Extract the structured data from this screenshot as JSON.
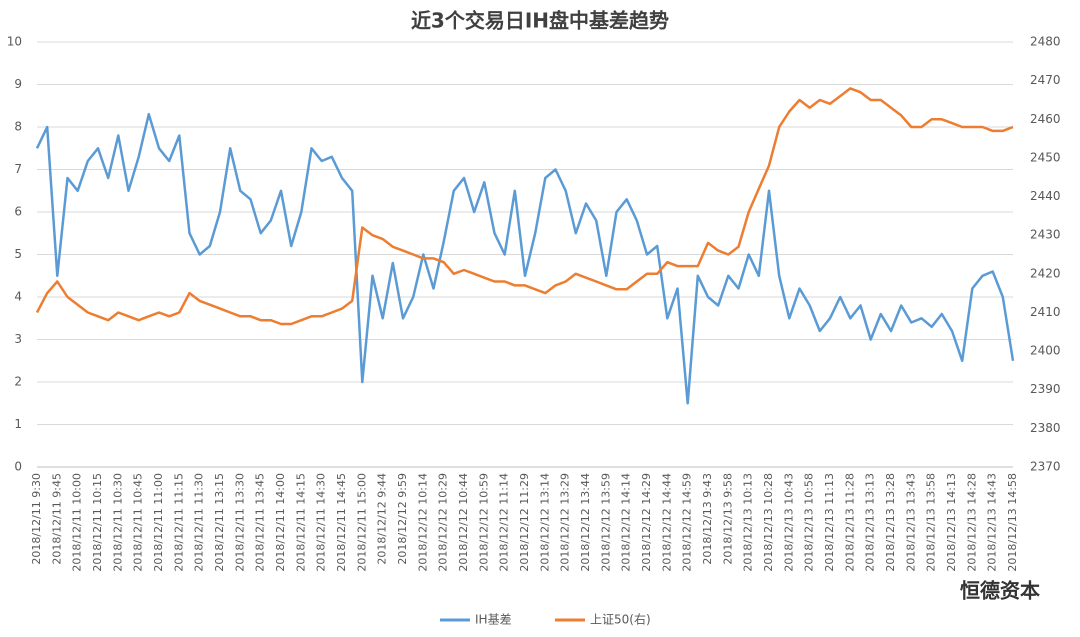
{
  "chart_data": {
    "type": "line",
    "title": "近3个交易日IH盘中基差趋势",
    "watermark": "恒德资本",
    "categories": [
      "2018/12/11 9:30",
      null,
      "2018/12/11 9:45",
      null,
      "2018/12/11 10:00",
      null,
      "2018/12/11 10:15",
      null,
      "2018/12/11 10:30",
      null,
      "2018/12/11 10:45",
      null,
      "2018/12/11 11:00",
      null,
      "2018/12/11 11:15",
      null,
      "2018/12/11 11:30",
      null,
      "2018/12/11 13:15",
      null,
      "2018/12/11 13:30",
      null,
      "2018/12/11 13:45",
      null,
      "2018/12/11 14:00",
      null,
      "2018/12/11 14:15",
      null,
      "2018/12/11 14:30",
      null,
      "2018/12/11 14:45",
      null,
      "2018/12/11 15:00",
      null,
      "2018/12/12 9:44",
      null,
      "2018/12/12 9:59",
      null,
      "2018/12/12 10:14",
      null,
      "2018/12/12 10:29",
      null,
      "2018/12/12 10:44",
      null,
      "2018/12/12 10:59",
      null,
      "2018/12/12 11:14",
      null,
      "2018/12/12 11:29",
      null,
      "2018/12/12 13:14",
      null,
      "2018/12/12 13:29",
      null,
      "2018/12/12 13:44",
      null,
      "2018/12/12 13:59",
      null,
      "2018/12/12 14:14",
      null,
      "2018/12/12 14:29",
      null,
      "2018/12/12 14:44",
      null,
      "2018/12/12 14:59",
      null,
      "2018/12/13 9:43",
      null,
      "2018/12/13 9:58",
      null,
      "2018/12/13 10:13",
      null,
      "2018/12/13 10:28",
      null,
      "2018/12/13 10:43",
      null,
      "2018/12/13 10:58",
      null,
      "2018/12/13 11:13",
      null,
      "2018/12/13 11:28",
      null,
      "2018/12/13 13:13",
      null,
      "2018/12/13 13:28",
      null,
      "2018/12/13 13:43",
      null,
      "2018/12/13 13:58",
      null,
      "2018/12/13 14:13",
      null,
      "2018/12/13 14:28",
      null,
      "2018/12/13 14:43",
      null,
      "2018/12/13 14:58"
    ],
    "series": [
      {
        "name": "IH基差",
        "color": "#5b9bd5",
        "values": [
          7.5,
          8.0,
          4.5,
          6.8,
          6.5,
          7.2,
          7.5,
          6.8,
          7.8,
          6.5,
          7.3,
          8.3,
          7.5,
          7.2,
          7.8,
          5.5,
          5.0,
          5.2,
          6.0,
          7.5,
          6.5,
          6.3,
          5.5,
          5.8,
          6.5,
          5.2,
          6.0,
          7.5,
          7.2,
          7.3,
          6.8,
          6.5,
          2.0,
          4.5,
          3.5,
          4.8,
          3.5,
          4.0,
          5.0,
          4.2,
          5.3,
          6.5,
          6.8,
          6.0,
          6.7,
          5.5,
          5.0,
          6.5,
          4.5,
          5.5,
          6.8,
          7.0,
          6.5,
          5.5,
          6.2,
          5.8,
          4.5,
          6.0,
          6.3,
          5.8,
          5.0,
          5.2,
          3.5,
          4.2,
          1.5,
          4.5,
          4.0,
          3.8,
          4.5,
          4.2,
          5.0,
          4.5,
          6.5,
          4.5,
          3.5,
          4.2,
          3.8,
          3.2,
          3.5,
          4.0,
          3.5,
          3.8,
          3.0,
          3.6,
          3.2,
          3.8,
          3.4,
          3.5,
          3.3,
          3.6,
          3.2,
          2.5,
          4.2,
          4.5,
          4.6,
          4.0,
          2.5
        ]
      },
      {
        "name": "上证50(右)",
        "color": "#ed7d31",
        "axis": "y2",
        "values": [
          2410,
          2415,
          2418,
          2414,
          2412,
          2410,
          2409,
          2408,
          2410,
          2409,
          2408,
          2409,
          2410,
          2409,
          2410,
          2415,
          2413,
          2412,
          2411,
          2410,
          2409,
          2409,
          2408,
          2408,
          2407,
          2407,
          2408,
          2409,
          2409,
          2410,
          2411,
          2413,
          2432,
          2430,
          2429,
          2427,
          2426,
          2425,
          2424,
          2424,
          2423,
          2420,
          2421,
          2420,
          2419,
          2418,
          2418,
          2417,
          2417,
          2416,
          2415,
          2417,
          2418,
          2420,
          2419,
          2418,
          2417,
          2416,
          2416,
          2418,
          2420,
          2420,
          2423,
          2422,
          2422,
          2422,
          2428,
          2426,
          2425,
          2427,
          2436,
          2442,
          2448,
          2458,
          2462,
          2465,
          2463,
          2465,
          2464,
          2466,
          2468,
          2467,
          2465,
          2465,
          2463,
          2461,
          2458,
          2458,
          2460,
          2460,
          2459,
          2458,
          2458,
          2458,
          2457,
          2457,
          2458
        ]
      }
    ],
    "ylim": [
      0,
      10
    ],
    "yticks": [
      0,
      1,
      2,
      3,
      4,
      5,
      6,
      7,
      8,
      9,
      10
    ],
    "y2lim": [
      2370,
      2480
    ],
    "y2ticks": [
      2370,
      2380,
      2390,
      2400,
      2410,
      2420,
      2430,
      2440,
      2450,
      2460,
      2470,
      2480
    ],
    "grid": true,
    "legend": "bottom"
  }
}
